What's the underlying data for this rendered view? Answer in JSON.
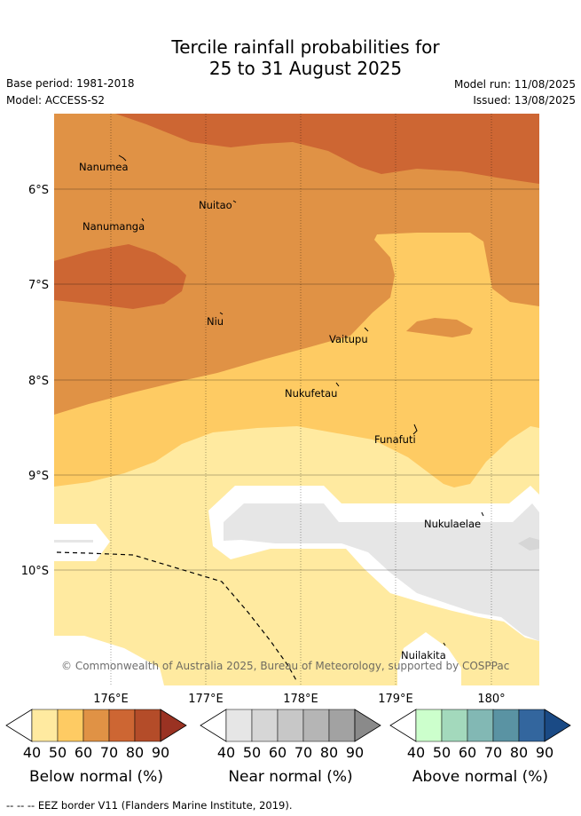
{
  "title": {
    "line1": "Tercile rainfall probabilities for",
    "line2": "25 to 31 August 2025"
  },
  "meta": {
    "base_period": "Base period: 1981-2018",
    "model": "Model: ACCESS-S2",
    "model_run": "Model run: 11/08/2025",
    "issued": "Issued: 13/08/2025"
  },
  "map": {
    "lat_ticks": [
      "6°S",
      "7°S",
      "8°S",
      "9°S",
      "10°S"
    ],
    "lon_ticks": [
      "176°E",
      "177°E",
      "178°E",
      "179°E",
      "180°"
    ],
    "islands": [
      "Nanumea",
      "Nuitao",
      "Nanumanga",
      "Niu",
      "Vaitupu",
      "Nukufetau",
      "Funafuti",
      "Nukulaelae",
      "Nuilakita"
    ],
    "copyright": "© Commonwealth of Australia 2025, Bureau of Meteorology, supported by COSPPac"
  },
  "legends": {
    "tick_labels": [
      "40",
      "50",
      "60",
      "70",
      "80",
      "90"
    ],
    "below": {
      "label": "Below normal (%)",
      "colors": [
        "#ffffff",
        "#ffeaa0",
        "#fecb63",
        "#e09245",
        "#cd6633",
        "#b44c29",
        "#9a3222"
      ]
    },
    "near": {
      "label": "Near normal (%)",
      "colors": [
        "#ffffff",
        "#e6e6e6",
        "#d6d6d6",
        "#c7c7c7",
        "#b5b5b5",
        "#a2a2a2",
        "#8a8a8a"
      ]
    },
    "above": {
      "label": "Above normal (%)",
      "colors": [
        "#ffffff",
        "#ccffcc",
        "#a3d9bc",
        "#82b8b4",
        "#5a93a3",
        "#33669e",
        "#1a4a85"
      ]
    }
  },
  "footer": {
    "eez_note": "-- -- -- EEZ border V11 (Flanders Marine Institute, 2019)."
  }
}
